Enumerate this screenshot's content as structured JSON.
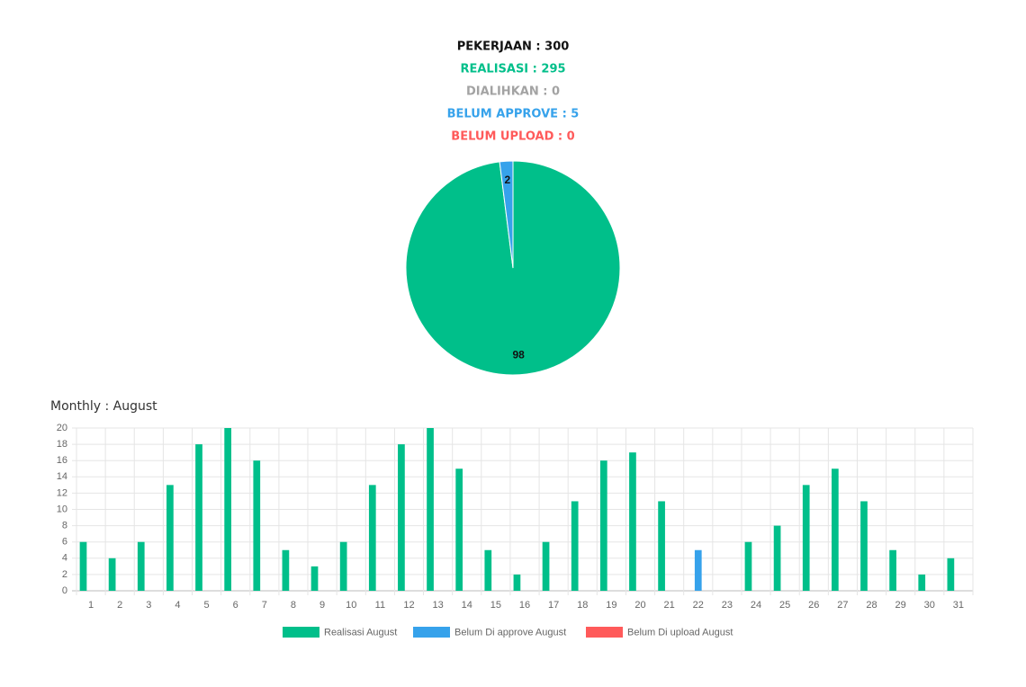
{
  "summary": [
    {
      "text": "PEKERJAAN : 300",
      "color": "#111111"
    },
    {
      "text": "REALISASI : 295",
      "color": "#00bf8a"
    },
    {
      "text": "DIALIHKAN : 0",
      "color": "#a3a3a3"
    },
    {
      "text": "BELUM APPROVE : 5",
      "color": "#36a2eb"
    },
    {
      "text": "BELUM UPLOAD : 0",
      "color": "#ff5a5a"
    }
  ],
  "chart_data": [
    {
      "type": "pie",
      "values": [
        98,
        2
      ],
      "colors": [
        "#00bf8a",
        "#36a2eb"
      ]
    },
    {
      "type": "bar",
      "title": "Monthly : August",
      "categories": [
        "1",
        "2",
        "3",
        "4",
        "5",
        "6",
        "7",
        "8",
        "9",
        "10",
        "11",
        "12",
        "13",
        "14",
        "15",
        "16",
        "17",
        "18",
        "19",
        "20",
        "21",
        "22",
        "23",
        "24",
        "25",
        "26",
        "27",
        "28",
        "29",
        "30",
        "31"
      ],
      "series": [
        {
          "name": "Realisasi August",
          "color": "#00bf8a",
          "values": [
            6,
            4,
            6,
            13,
            18,
            20,
            16,
            5,
            3,
            6,
            13,
            18,
            20,
            15,
            5,
            2,
            6,
            11,
            16,
            17,
            11,
            0,
            0,
            6,
            8,
            13,
            15,
            11,
            5,
            2,
            4
          ]
        },
        {
          "name": "Belum Di approve August",
          "color": "#36a2eb",
          "values": [
            0,
            0,
            0,
            0,
            0,
            0,
            0,
            0,
            0,
            0,
            0,
            0,
            0,
            0,
            0,
            0,
            0,
            0,
            0,
            0,
            0,
            5,
            0,
            0,
            0,
            0,
            0,
            0,
            0,
            0,
            0
          ]
        },
        {
          "name": "Belum Di upload August",
          "color": "#ff5a5a",
          "values": [
            0,
            0,
            0,
            0,
            0,
            0,
            0,
            0,
            0,
            0,
            0,
            0,
            0,
            0,
            0,
            0,
            0,
            0,
            0,
            0,
            0,
            0,
            0,
            0,
            0,
            0,
            0,
            0,
            0,
            0,
            0
          ]
        }
      ],
      "ylim": [
        0,
        20
      ],
      "yticks": [
        0,
        2,
        4,
        6,
        8,
        10,
        12,
        14,
        16,
        18,
        20
      ],
      "grid": true
    }
  ]
}
